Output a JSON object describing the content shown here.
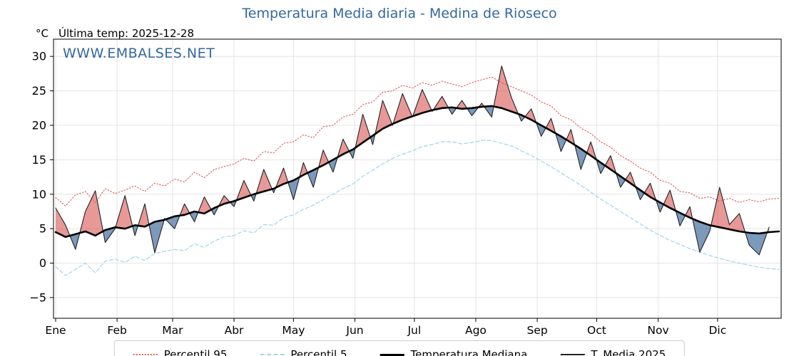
{
  "chart_data": {
    "type": "line",
    "title": "Temperatura Media diaria - Medina de Rioseco",
    "xlabel": "",
    "ylabel": "°C",
    "ylim": [
      -8,
      32.5
    ],
    "y_ticks": [
      -5,
      0,
      5,
      10,
      15,
      20,
      25,
      30
    ],
    "y_tick_labels": [
      "−5",
      "0",
      "5",
      "10",
      "15",
      "20",
      "25",
      "30"
    ],
    "grid": true,
    "legend_position": "bottom",
    "annotations": {
      "units": "°C",
      "last_temp": "Última temp: 2025-12-28",
      "watermark": "WWW.EMBALSES.NET"
    },
    "colors": {
      "title": "#35689c",
      "watermark": "#35689c",
      "p95": "#dd5a5a",
      "p5": "#a8d6ea",
      "median": "#000000",
      "t2025": "#222222",
      "fill_above": "rgba(214,69,65,0.55)",
      "fill_below": "rgba(70,110,160,0.70)",
      "grid": "#e4e4e4"
    },
    "months": [
      {
        "label": "Ene",
        "start_day": 0
      },
      {
        "label": "Feb",
        "start_day": 31
      },
      {
        "label": "Mar",
        "start_day": 59
      },
      {
        "label": "Abr",
        "start_day": 90
      },
      {
        "label": "May",
        "start_day": 120
      },
      {
        "label": "Jun",
        "start_day": 151
      },
      {
        "label": "Jul",
        "start_day": 181
      },
      {
        "label": "Ago",
        "start_day": 212
      },
      {
        "label": "Sep",
        "start_day": 243
      },
      {
        "label": "Oct",
        "start_day": 273
      },
      {
        "label": "Nov",
        "start_day": 304
      },
      {
        "label": "Dic",
        "start_day": 334
      }
    ],
    "x_days": [
      0,
      5,
      10,
      15,
      20,
      25,
      30,
      35,
      40,
      45,
      50,
      55,
      60,
      65,
      70,
      75,
      80,
      85,
      90,
      95,
      100,
      105,
      110,
      115,
      120,
      125,
      130,
      135,
      140,
      145,
      150,
      155,
      160,
      165,
      170,
      175,
      180,
      185,
      190,
      195,
      200,
      205,
      210,
      215,
      220,
      225,
      230,
      235,
      240,
      245,
      250,
      255,
      260,
      265,
      270,
      275,
      280,
      285,
      290,
      295,
      300,
      305,
      310,
      315,
      320,
      325,
      330,
      335,
      340,
      345,
      350,
      355,
      360,
      365
    ],
    "series": [
      {
        "name": "Percentil 95",
        "key": "p95",
        "style": "dotted",
        "values": [
          9.5,
          8.3,
          9.9,
          10.4,
          8.8,
          10.8,
          10.1,
          10.6,
          11.2,
          10.4,
          11.6,
          11.2,
          12.2,
          11.8,
          13.2,
          12.4,
          13.6,
          14.0,
          14.4,
          15.2,
          14.8,
          16.2,
          16.0,
          17.4,
          17.6,
          18.6,
          18.2,
          19.8,
          20.0,
          21.2,
          21.6,
          23.0,
          23.4,
          24.8,
          25.0,
          25.8,
          25.4,
          26.2,
          25.8,
          26.4,
          26.0,
          25.6,
          26.2,
          26.6,
          27.0,
          26.2,
          25.6,
          25.0,
          24.4,
          23.4,
          22.8,
          21.4,
          20.8,
          19.6,
          18.8,
          17.6,
          16.8,
          15.6,
          14.8,
          13.8,
          13.2,
          12.0,
          11.6,
          10.4,
          10.2,
          9.4,
          9.6,
          9.0,
          9.4,
          8.8,
          9.2,
          8.9,
          9.3,
          9.4
        ]
      },
      {
        "name": "Percentil 5",
        "key": "p5",
        "style": "dashed",
        "values": [
          -0.5,
          -1.8,
          -0.9,
          0.0,
          -1.4,
          0.3,
          0.6,
          0.1,
          1.0,
          0.4,
          1.4,
          1.7,
          2.0,
          1.8,
          2.8,
          2.3,
          3.2,
          3.8,
          4.0,
          4.7,
          4.4,
          5.6,
          5.5,
          6.6,
          7.0,
          7.8,
          8.4,
          9.2,
          10.0,
          10.8,
          11.5,
          12.6,
          13.5,
          14.4,
          15.2,
          15.8,
          16.3,
          16.9,
          17.2,
          17.6,
          17.6,
          17.3,
          17.5,
          17.8,
          17.8,
          17.4,
          17.0,
          16.3,
          15.6,
          14.8,
          14.0,
          13.1,
          12.2,
          11.3,
          10.3,
          9.3,
          8.4,
          7.5,
          6.6,
          5.7,
          4.8,
          4.0,
          3.3,
          2.7,
          2.1,
          1.6,
          1.1,
          0.7,
          0.3,
          0.0,
          -0.3,
          -0.6,
          -0.8,
          -0.9
        ]
      },
      {
        "name": "Temperatura Mediana",
        "key": "median",
        "style": "solid-thick",
        "values": [
          4.5,
          3.8,
          4.2,
          4.6,
          4.0,
          4.8,
          5.2,
          5.0,
          5.5,
          5.3,
          6.0,
          6.3,
          6.8,
          7.0,
          7.5,
          7.2,
          8.0,
          8.6,
          9.0,
          9.5,
          10.0,
          10.4,
          10.8,
          11.5,
          12.0,
          12.8,
          13.5,
          14.2,
          15.0,
          15.8,
          16.5,
          17.5,
          18.5,
          19.5,
          20.2,
          20.8,
          21.3,
          21.8,
          22.2,
          22.5,
          22.6,
          22.4,
          22.5,
          22.7,
          22.8,
          22.5,
          22.0,
          21.5,
          20.8,
          20.0,
          19.2,
          18.4,
          17.5,
          16.6,
          15.6,
          14.6,
          13.6,
          12.6,
          11.6,
          10.6,
          9.6,
          8.8,
          8.0,
          7.3,
          6.6,
          6.0,
          5.5,
          5.2,
          4.9,
          4.6,
          4.4,
          4.3,
          4.5,
          4.6
        ]
      },
      {
        "name": "T. Media 2025",
        "key": "t2025",
        "style": "solid-thin",
        "values": [
          8.0,
          5.5,
          2.0,
          7.5,
          10.5,
          3.0,
          5.0,
          9.8,
          4.0,
          8.6,
          1.5,
          6.5,
          5.0,
          8.6,
          6.0,
          9.6,
          7.0,
          9.8,
          8.2,
          12.0,
          9.0,
          13.6,
          10.2,
          13.8,
          9.2,
          14.6,
          11.0,
          16.4,
          13.2,
          18.0,
          15.2,
          21.6,
          17.2,
          23.6,
          20.0,
          24.6,
          21.2,
          25.2,
          22.0,
          24.2,
          21.6,
          23.6,
          21.4,
          23.2,
          21.2,
          28.6,
          24.0,
          20.6,
          22.4,
          18.4,
          21.0,
          16.2,
          19.4,
          13.6,
          17.6,
          13.0,
          15.6,
          11.0,
          13.2,
          9.2,
          11.6,
          7.4,
          10.6,
          5.4,
          8.2,
          1.6,
          4.6,
          11.0,
          5.6,
          7.2,
          2.6,
          1.2,
          5.2,
          null
        ]
      }
    ]
  }
}
